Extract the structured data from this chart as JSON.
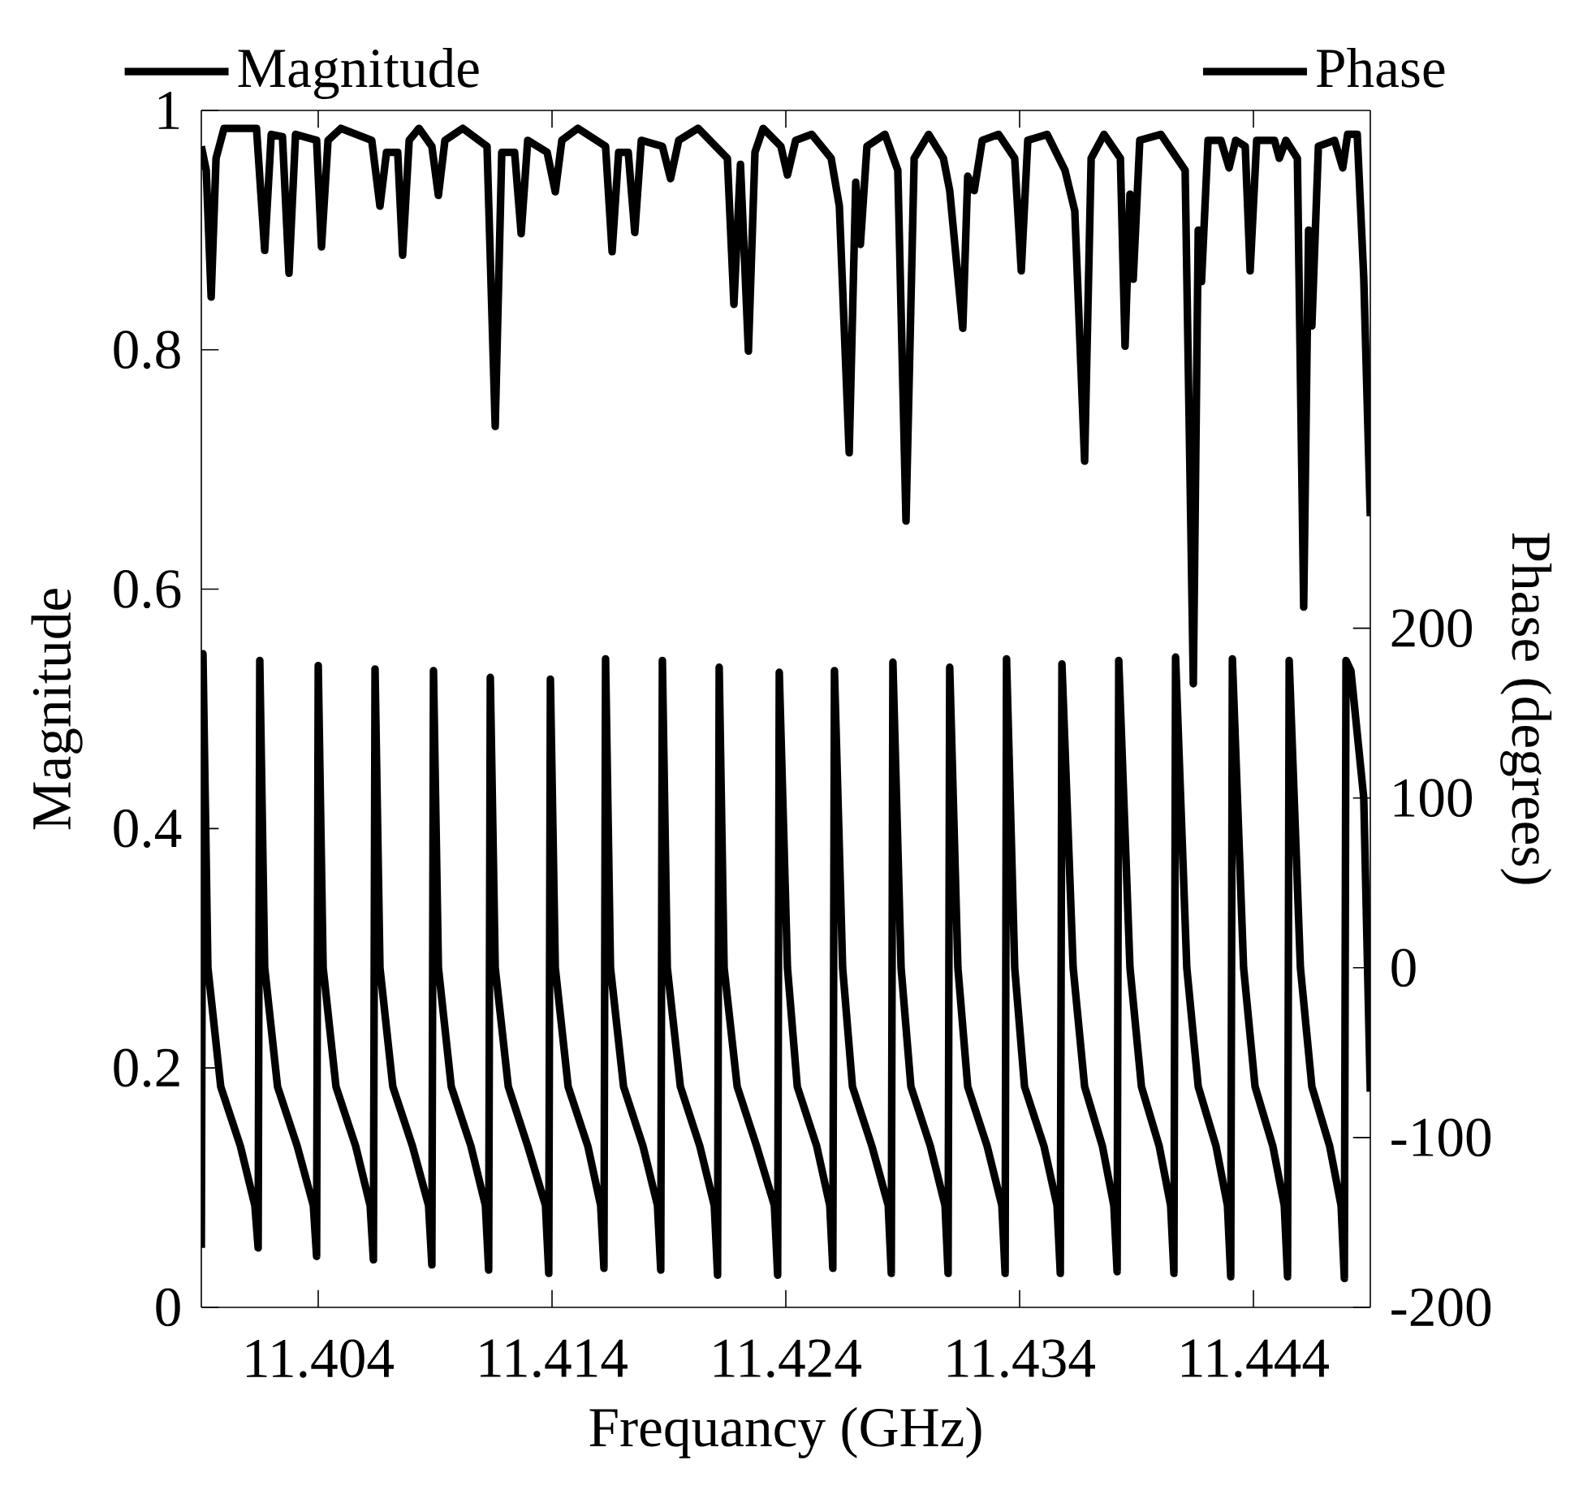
{
  "chart_data": {
    "type": "line",
    "xlabel": "Frequancy (GHz)",
    "ylabel": "Magnitude",
    "y2label": "Phase (degrees)",
    "xlim": [
      11.399,
      11.449
    ],
    "xticks": [
      11.404,
      11.414,
      11.424,
      11.434,
      11.444
    ],
    "ylim": [
      0,
      1
    ],
    "yticks": [
      0,
      0.2,
      0.4,
      0.6,
      0.8,
      1
    ],
    "y2lim": [
      -200,
      505
    ],
    "y2ticks": [
      -200,
      -100,
      0,
      100,
      200
    ],
    "legend": "top",
    "marker": "none",
    "line_style": "solid",
    "series": [
      {
        "name": "Magnitude",
        "color": "#000000",
        "x": [
          11.399,
          11.39921,
          11.39942,
          11.39963,
          11.39997,
          11.40136,
          11.40171,
          11.40199,
          11.40247,
          11.40275,
          11.40303,
          11.40393,
          11.40414,
          11.40442,
          11.40497,
          11.40629,
          11.40664,
          11.40692,
          11.4074,
          11.40761,
          11.40789,
          11.40831,
          11.40886,
          11.40914,
          11.40942,
          11.41018,
          11.41122,
          11.41157,
          11.41185,
          11.4124,
          11.41268,
          11.41296,
          11.41379,
          11.41414,
          11.41442,
          11.41511,
          11.41629,
          11.41657,
          11.41685,
          11.41726,
          11.41754,
          11.41782,
          11.41872,
          11.41907,
          11.41942,
          11.42025,
          11.4215,
          11.42178,
          11.42206,
          11.4224,
          11.42268,
          11.42303,
          11.42379,
          11.42407,
          11.42442,
          11.42511,
          11.42594,
          11.42629,
          11.42671,
          11.42699,
          11.42719,
          11.42747,
          11.42824,
          11.42879,
          11.42914,
          11.42949,
          11.43011,
          11.43074,
          11.43101,
          11.43157,
          11.43178,
          11.43206,
          11.4324,
          11.4331,
          11.43379,
          11.43407,
          11.43435,
          11.43518,
          11.43594,
          11.43636,
          11.43678,
          11.43706,
          11.43761,
          11.43831,
          11.43851,
          11.43872,
          11.43886,
          11.43914,
          11.44004,
          11.44108,
          11.44143,
          11.44164,
          11.44178,
          11.44206,
          11.44261,
          11.44296,
          11.44324,
          11.44365,
          11.44386,
          11.44414,
          11.4449,
          11.44511,
          11.44539,
          11.44588,
          11.44615,
          11.44636,
          11.4465,
          11.44678,
          11.44747,
          11.44782,
          11.44803,
          11.44844,
          11.44872,
          11.449
        ],
        "values": [
          0.97,
          0.95,
          0.844,
          0.96,
          0.985,
          0.985,
          0.883,
          0.98,
          0.978,
          0.864,
          0.98,
          0.975,
          0.886,
          0.975,
          0.985,
          0.975,
          0.92,
          0.965,
          0.965,
          0.879,
          0.975,
          0.985,
          0.97,
          0.929,
          0.975,
          0.985,
          0.97,
          0.736,
          0.965,
          0.965,
          0.897,
          0.975,
          0.965,
          0.932,
          0.975,
          0.985,
          0.97,
          0.882,
          0.965,
          0.965,
          0.898,
          0.975,
          0.97,
          0.943,
          0.975,
          0.985,
          0.96,
          0.838,
          0.955,
          0.799,
          0.965,
          0.985,
          0.97,
          0.946,
          0.975,
          0.98,
          0.96,
          0.92,
          0.714,
          0.94,
          0.888,
          0.97,
          0.98,
          0.95,
          0.657,
          0.96,
          0.98,
          0.96,
          0.933,
          0.818,
          0.945,
          0.933,
          0.975,
          0.98,
          0.96,
          0.866,
          0.975,
          0.98,
          0.95,
          0.916,
          0.707,
          0.96,
          0.98,
          0.96,
          0.803,
          0.93,
          0.859,
          0.975,
          0.98,
          0.95,
          0.521,
          0.9,
          0.857,
          0.975,
          0.975,
          0.952,
          0.975,
          0.97,
          0.866,
          0.975,
          0.975,
          0.96,
          0.975,
          0.96,
          0.585,
          0.9,
          0.82,
          0.97,
          0.975,
          0.952,
          0.98,
          0.98,
          0.86,
          0.661
        ]
      },
      {
        "name": "Phase",
        "color": "#000000",
        "axis": "y2",
        "x": [
          11.399,
          11.39907,
          11.39928,
          11.39983,
          11.40067,
          11.40129,
          11.40143,
          11.4015,
          11.40171,
          11.40226,
          11.4031,
          11.40379,
          11.40393,
          11.404,
          11.40421,
          11.40476,
          11.4056,
          11.40622,
          11.40636,
          11.40643,
          11.40664,
          11.40719,
          11.40803,
          11.40872,
          11.40886,
          11.40893,
          11.40914,
          11.40969,
          11.41053,
          11.41115,
          11.41129,
          11.41136,
          11.41157,
          11.41213,
          11.41296,
          11.41372,
          11.41386,
          11.41393,
          11.41414,
          11.41469,
          11.41553,
          11.41608,
          11.41622,
          11.41629,
          11.4165,
          11.41706,
          11.41789,
          11.41851,
          11.41865,
          11.41872,
          11.41893,
          11.41949,
          11.42032,
          11.42094,
          11.42108,
          11.42115,
          11.42136,
          11.42192,
          11.42275,
          11.42351,
          11.42365,
          11.42372,
          11.42407,
          11.42449,
          11.42532,
          11.42588,
          11.42601,
          11.42608,
          11.42643,
          11.42685,
          11.42768,
          11.42838,
          11.42851,
          11.42858,
          11.42893,
          11.42935,
          11.43018,
          11.43081,
          11.43094,
          11.43101,
          11.43136,
          11.43178,
          11.43261,
          11.43324,
          11.43338,
          11.43344,
          11.43379,
          11.43421,
          11.43504,
          11.4356,
          11.43574,
          11.43581,
          11.43629,
          11.43678,
          11.43754,
          11.43803,
          11.43817,
          11.43824,
          11.43872,
          11.43921,
          11.43997,
          11.44046,
          11.4406,
          11.44067,
          11.44115,
          11.44164,
          11.4424,
          11.44289,
          11.44303,
          11.4431,
          11.44358,
          11.44407,
          11.44483,
          11.44532,
          11.44546,
          11.44553,
          11.44601,
          11.4465,
          11.44726,
          11.44775,
          11.44789,
          11.44796,
          11.44817,
          11.44872,
          11.449
        ],
        "values": [
          -165,
          185,
          0,
          -70,
          -105,
          -140,
          -165,
          181,
          0,
          -70,
          -105,
          -140,
          -170,
          178,
          0,
          -70,
          -105,
          -140,
          -172,
          176,
          0,
          -70,
          -105,
          -140,
          -175,
          175,
          0,
          -70,
          -105,
          -140,
          -178,
          171,
          0,
          -70,
          -105,
          -140,
          -180,
          170,
          0,
          -70,
          -105,
          -140,
          -177,
          182,
          0,
          -70,
          -105,
          -140,
          -178,
          181,
          0,
          -70,
          -105,
          -140,
          -181,
          177,
          0,
          -70,
          -105,
          -140,
          -181,
          174,
          0,
          -70,
          -105,
          -140,
          -177,
          175,
          0,
          -70,
          -105,
          -140,
          -180,
          180,
          0,
          -70,
          -105,
          -140,
          -180,
          177,
          0,
          -70,
          -105,
          -140,
          -180,
          182,
          0,
          -70,
          -105,
          -140,
          -180,
          179,
          0,
          -70,
          -105,
          -140,
          -179,
          181,
          0,
          -70,
          -105,
          -140,
          -180,
          183,
          0,
          -70,
          -105,
          -140,
          -182,
          182,
          0,
          -70,
          -105,
          -140,
          -182,
          181,
          0,
          -70,
          -105,
          -140,
          -183,
          181,
          175,
          100,
          -73
        ]
      }
    ]
  }
}
